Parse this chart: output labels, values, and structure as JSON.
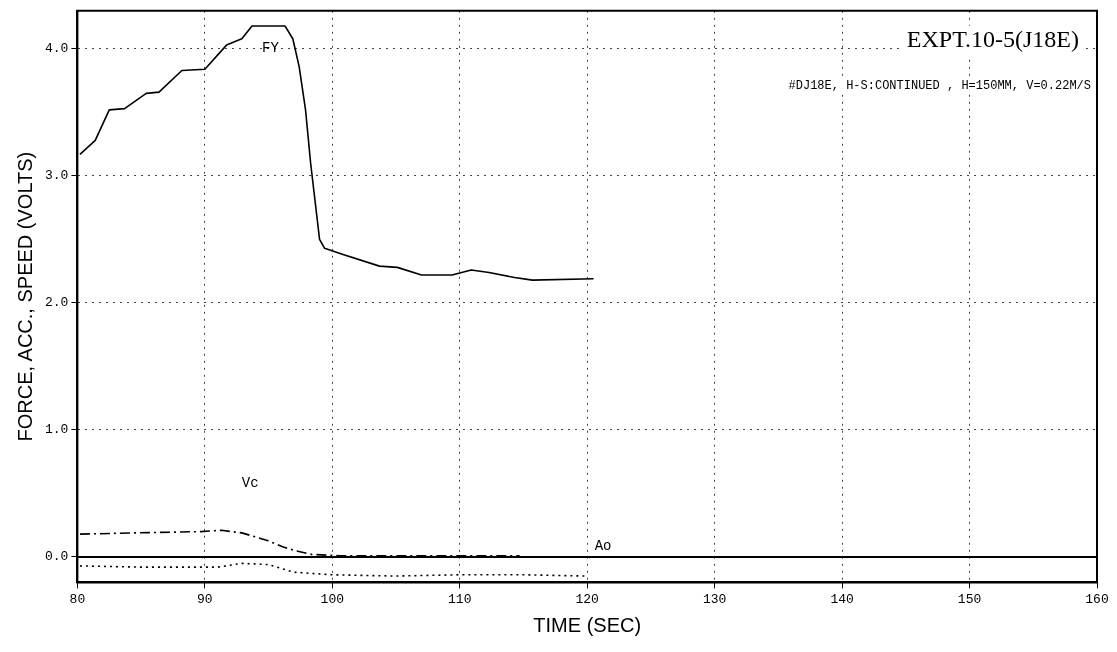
{
  "chart_data": {
    "type": "line",
    "title": "EXPT.10-5(J18E)",
    "subtitle": "#DJ18E, H-S:CONTINUED , H=150MM, V=0.22M/S",
    "xlabel": "TIME (SEC)",
    "ylabel": "FORCE, ACC., SPEED (VOLTS)",
    "series": [
      {
        "name": "FY",
        "color": "#000000",
        "line_style": "solid",
        "x": [
          80.2,
          81.4,
          82.5,
          83.7,
          85.4,
          86.4,
          88.2,
          90,
          91.7,
          92.9,
          93.7,
          96.3,
          96.9,
          97.4,
          97.9,
          98.3,
          99.0,
          99.4,
          100.9,
          103.7,
          105.1,
          107.0,
          109.4,
          110.9,
          112.3,
          114.3,
          115.7,
          120.5
        ],
        "values": [
          3.17,
          3.28,
          3.52,
          3.53,
          3.65,
          3.66,
          3.83,
          3.84,
          4.03,
          4.08,
          4.18,
          4.18,
          4.08,
          3.86,
          3.52,
          3.1,
          2.5,
          2.43,
          2.38,
          2.29,
          2.28,
          2.22,
          2.22,
          2.26,
          2.24,
          2.2,
          2.18,
          2.19
        ]
      },
      {
        "name": "Vc",
        "color": "#000000",
        "line_style": "dashed",
        "x": [
          80.2,
          84.6,
          89.7,
          91.3,
          92.9,
          94.9,
          96.1,
          97.1,
          98.4,
          100.6,
          114.7
        ],
        "values": [
          0.18,
          0.19,
          0.2,
          0.21,
          0.19,
          0.13,
          0.08,
          0.05,
          0.02,
          0.01,
          0.01
        ]
      },
      {
        "name": "Ao",
        "color": "#000000",
        "line_style": "dotted",
        "x": [
          80.2,
          85,
          91,
          92.9,
          95,
          97,
          100,
          105,
          110,
          115,
          119.8
        ],
        "values": [
          -0.07,
          -0.08,
          -0.08,
          -0.05,
          -0.06,
          -0.12,
          -0.14,
          -0.15,
          -0.14,
          -0.14,
          -0.15
        ]
      }
    ],
    "ref_lines": [
      {
        "axis": "y",
        "value": 0,
        "color": "#000000",
        "line_style": "solid"
      }
    ],
    "xlim": [
      80,
      160
    ],
    "xticks": [
      80,
      90,
      100,
      110,
      120,
      130,
      140,
      150,
      160
    ],
    "ylim": [
      -0.2,
      4.3
    ],
    "yticks": [
      {
        "value": 0,
        "label": "0.0"
      },
      {
        "value": 1,
        "label": "1.0"
      },
      {
        "value": 2,
        "label": "2.0"
      },
      {
        "value": 3,
        "label": "3.0"
      },
      {
        "value": 4,
        "label": "4.0"
      }
    ],
    "grid": true,
    "legend": false,
    "marker": "none"
  }
}
